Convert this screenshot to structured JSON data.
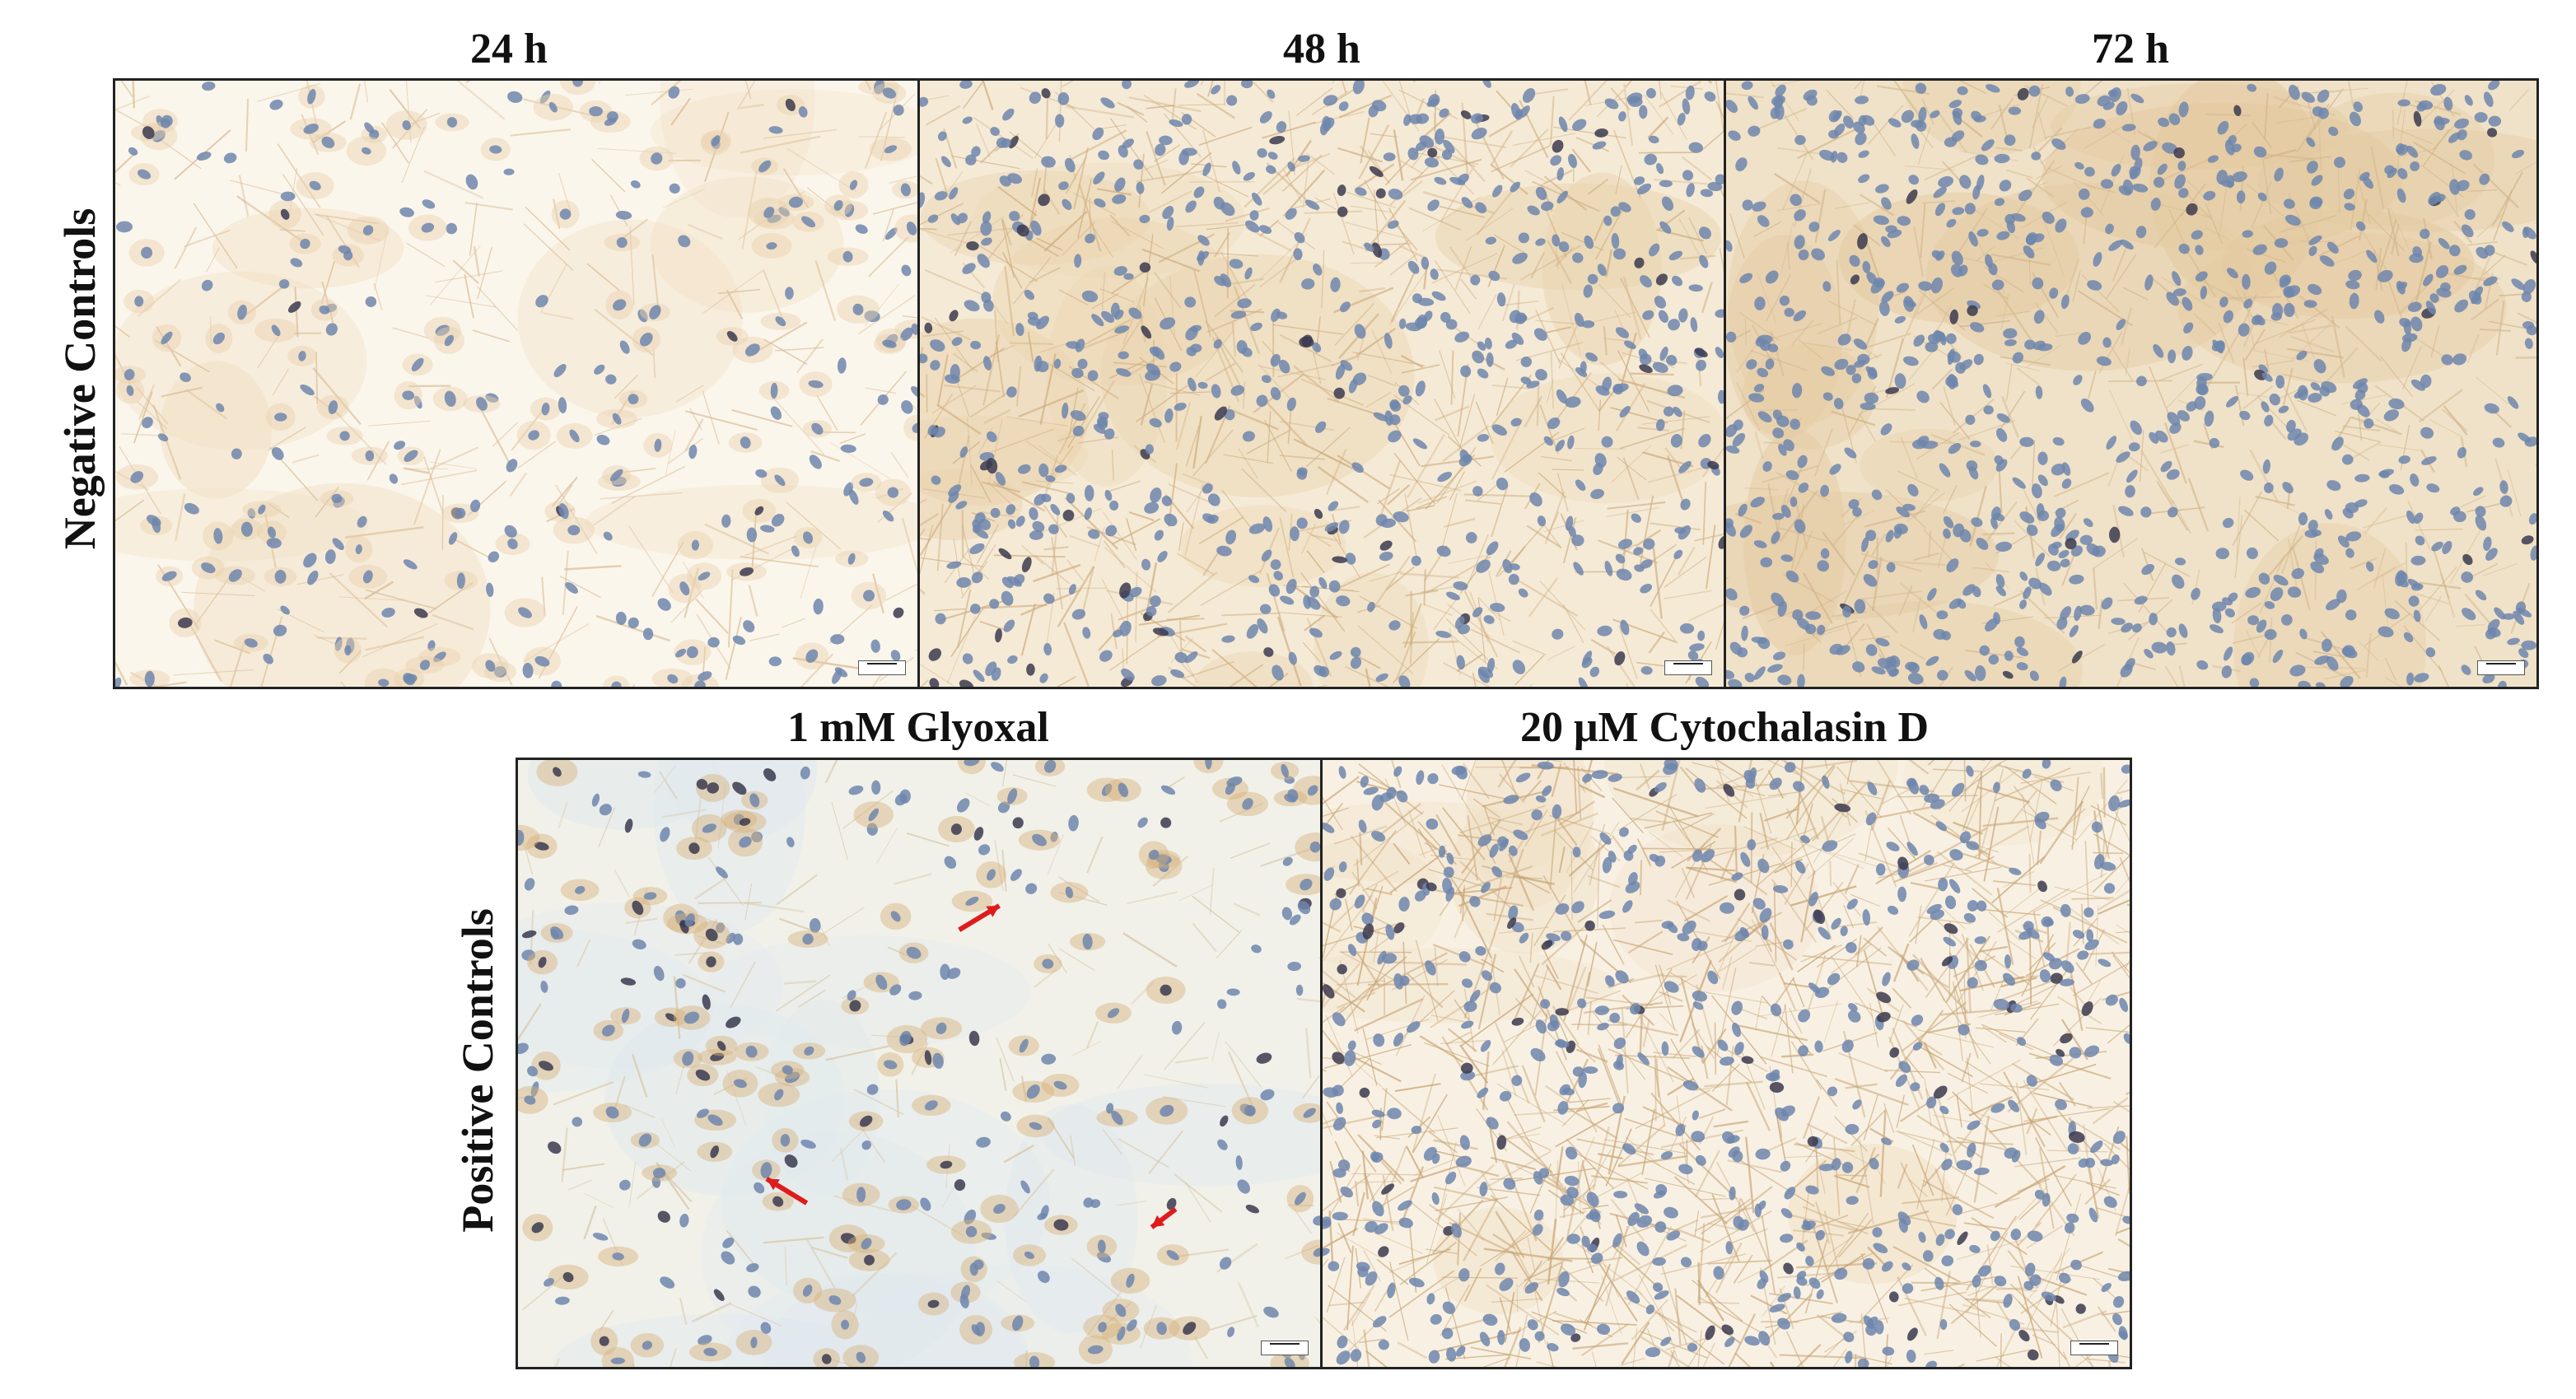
{
  "columns": {
    "t24": "24 h",
    "t48": "48 h",
    "t72": "72 h"
  },
  "positive": {
    "glyoxal": "1 mM Glyoxal",
    "cytochalasin": "20 μM Cytochalasin D"
  },
  "rows": {
    "negative": "Negative Controls",
    "positive": "Positive Controls"
  },
  "colors": {
    "background_stain": "#f3e7d3",
    "nucleus": "#6f86ad",
    "dark_nucleus": "#3b3a4f",
    "brown_stain": "#b7894e",
    "arrow": "#e01b1b"
  }
}
